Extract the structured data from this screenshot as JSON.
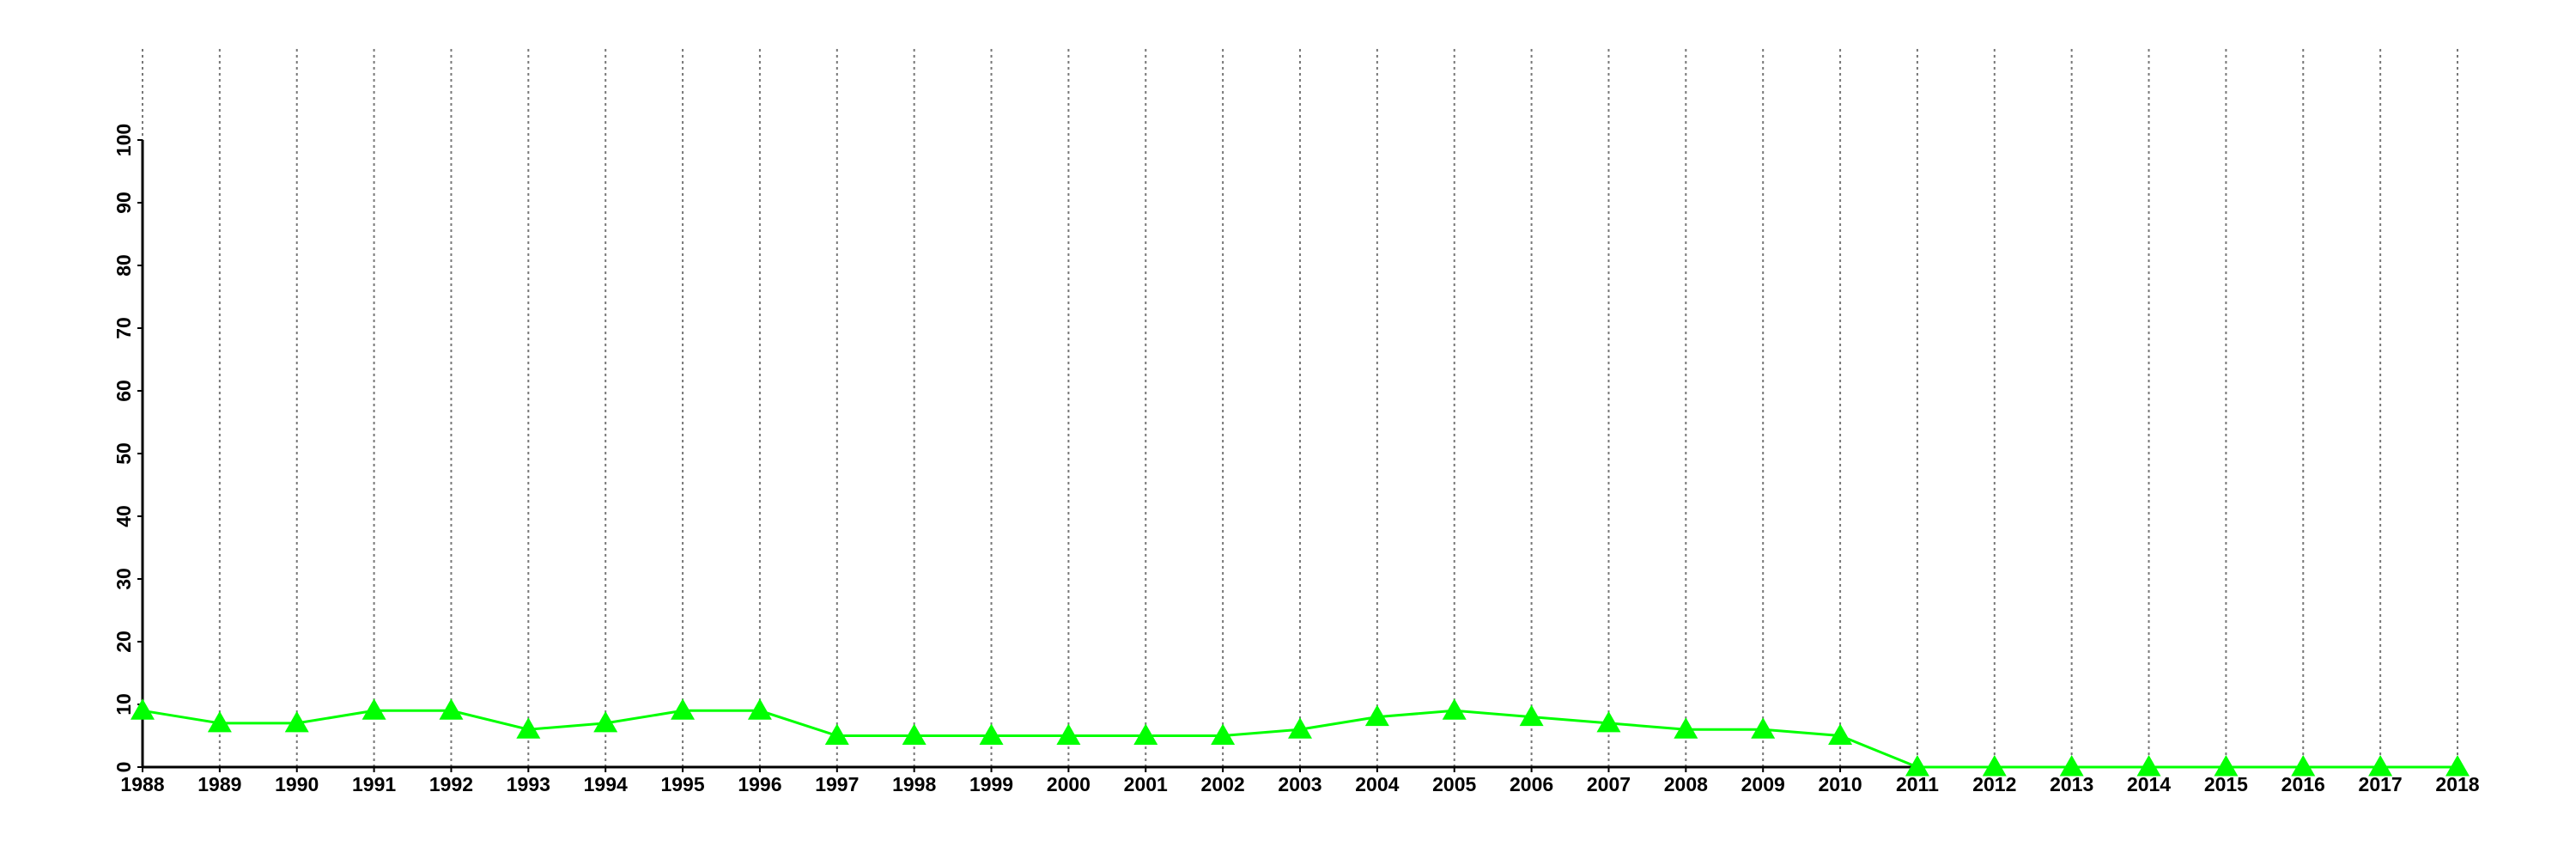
{
  "chart_data": {
    "type": "line",
    "x": [
      1988,
      1989,
      1990,
      1991,
      1992,
      1993,
      1994,
      1995,
      1996,
      1997,
      1998,
      1999,
      2000,
      2001,
      2002,
      2003,
      2004,
      2005,
      2006,
      2007,
      2008,
      2009,
      2010,
      2011,
      2012,
      2013,
      2014,
      2015,
      2016,
      2017,
      2018
    ],
    "series": [
      {
        "color": "#00ff00",
        "marker": "triangle",
        "values": [
          9,
          7,
          7,
          9,
          9,
          6,
          7,
          9,
          9,
          5,
          5,
          5,
          5,
          5,
          5,
          6,
          8,
          9,
          8,
          7,
          6,
          6,
          5,
          0,
          0,
          0,
          0,
          0,
          0,
          0,
          0
        ]
      }
    ],
    "xlim": [
      1988,
      2018
    ],
    "xticks": [
      1988,
      1989,
      1990,
      1991,
      1992,
      1993,
      1994,
      1995,
      1996,
      1997,
      1998,
      1999,
      2000,
      2001,
      2002,
      2003,
      2004,
      2005,
      2006,
      2007,
      2008,
      2009,
      2010,
      2011,
      2012,
      2013,
      2014,
      2015,
      2016,
      2017,
      2018
    ],
    "ylim": [
      0,
      100
    ],
    "yticks": [
      0,
      10,
      20,
      30,
      40,
      50,
      60,
      70,
      80,
      90,
      100
    ],
    "grid": "x"
  }
}
